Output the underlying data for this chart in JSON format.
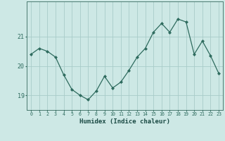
{
  "x": [
    0,
    1,
    2,
    3,
    4,
    5,
    6,
    7,
    8,
    9,
    10,
    11,
    12,
    13,
    14,
    15,
    16,
    17,
    18,
    19,
    20,
    21,
    22,
    23
  ],
  "y": [
    20.4,
    20.6,
    20.5,
    20.3,
    19.7,
    19.2,
    19.0,
    18.85,
    19.15,
    19.65,
    19.25,
    19.45,
    19.85,
    20.3,
    20.6,
    21.15,
    21.45,
    21.15,
    21.6,
    21.5,
    20.4,
    20.85,
    20.35,
    19.75
  ],
  "xlabel": "Humidex (Indice chaleur)",
  "ylim": [
    18.5,
    22.2
  ],
  "yticks": [
    19,
    20,
    21
  ],
  "bg_color": "#cde8e5",
  "grid_color": "#a8ccc9",
  "line_color": "#2e6b5e",
  "marker_color": "#2e6b5e",
  "axes_color": "#4a7a70",
  "tick_color": "#2e6b5e",
  "label_color": "#1a4a44"
}
